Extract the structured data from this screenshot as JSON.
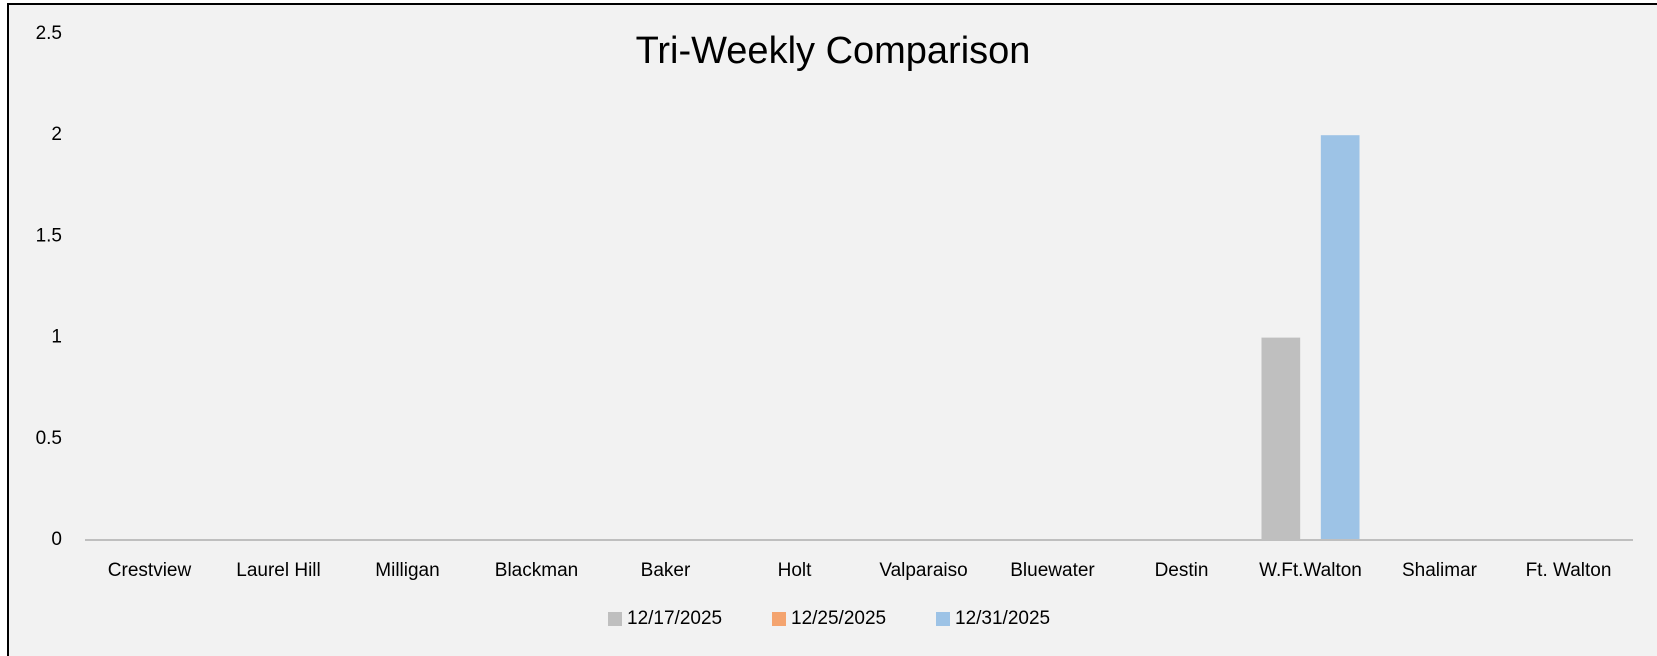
{
  "chart_data": {
    "type": "bar",
    "title": "Tri-Weekly Comparison",
    "categories": [
      "Crestview",
      "Laurel Hill",
      "Milligan",
      "Blackman",
      "Baker",
      "Holt",
      "Valparaiso",
      "Bluewater",
      "Destin",
      "W.Ft.Walton",
      "Shalimar",
      "Ft. Walton"
    ],
    "series": [
      {
        "name": "12/17/2025",
        "color": "#bfbfbf",
        "values": [
          0,
          0,
          0,
          0,
          0,
          0,
          0,
          0,
          0,
          1,
          0,
          0
        ]
      },
      {
        "name": "12/25/2025",
        "color": "#f4a46f",
        "values": [
          0,
          0,
          0,
          0,
          0,
          0,
          0,
          0,
          0,
          0,
          0,
          0
        ]
      },
      {
        "name": "12/31/2025",
        "color": "#9dc3e6",
        "values": [
          0,
          0,
          0,
          0,
          0,
          0,
          0,
          0,
          0,
          2,
          0,
          0
        ]
      }
    ],
    "ylim": [
      0,
      2.5
    ],
    "yticks": [
      0,
      0.5,
      1,
      1.5,
      2,
      2.5
    ],
    "grid": false,
    "legend": "bottom"
  }
}
